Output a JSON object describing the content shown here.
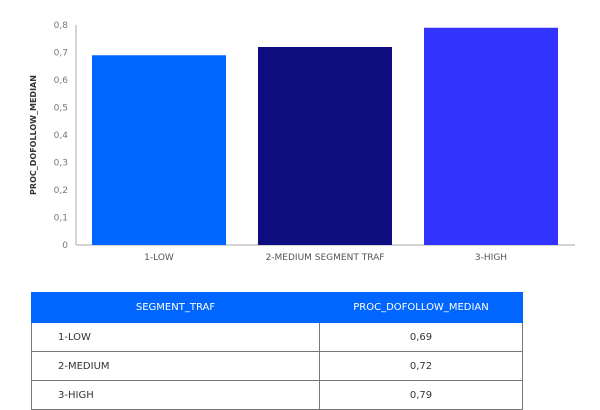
{
  "chart_data": {
    "type": "bar",
    "title": "",
    "xlabel": "",
    "ylabel": "PROC_DOFOLLOW_MEDIAN",
    "categories": [
      "1-LOW",
      "2-MEDIUM SEGMENT TRAF",
      "3-HIGH"
    ],
    "values": [
      0.69,
      0.72,
      0.79
    ],
    "colors": [
      "#0066ff",
      "#0d0d80",
      "#3333ff"
    ],
    "ylim": [
      0,
      0.8
    ],
    "yticks": [
      "0",
      "0,1",
      "0,2",
      "0,3",
      "0,4",
      "0,5",
      "0,6",
      "0,7",
      "0,8"
    ],
    "grid": false
  },
  "table": {
    "header_color": "#0066ff",
    "headers": [
      "SEGMENT_TRAF",
      "PROC_DOFOLLOW_MEDIAN"
    ],
    "rows": [
      [
        "1-LOW",
        "0,69"
      ],
      [
        "2-MEDIUM",
        "0,72"
      ],
      [
        "3-HIGH",
        "0,79"
      ]
    ]
  }
}
